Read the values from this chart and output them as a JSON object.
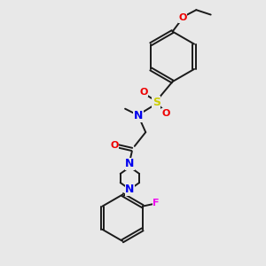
{
  "bg_color": "#e8e8e8",
  "bond_color": "#1a1a1a",
  "N_color": "#0000ee",
  "O_color": "#ee0000",
  "S_color": "#cccc00",
  "F_color": "#ee00ee",
  "figsize": [
    3.0,
    3.0
  ],
  "dpi": 100,
  "xlim": [
    0,
    10
  ],
  "ylim": [
    0,
    10
  ]
}
